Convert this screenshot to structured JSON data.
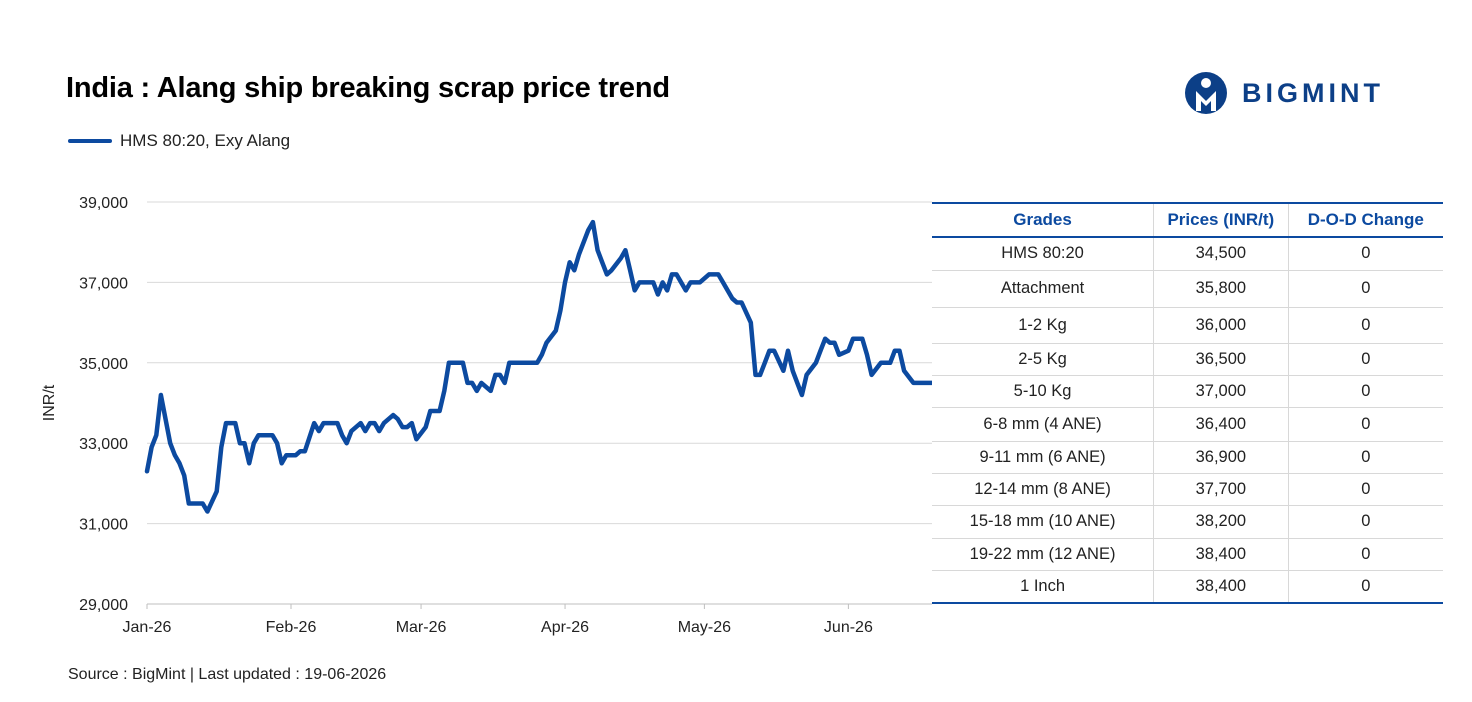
{
  "title": "India : Alang ship breaking scrap price trend",
  "logo": {
    "text": "BIGMINT",
    "icon": "bigmint-logo-icon",
    "color": "#0c3f87"
  },
  "source": "Source : BigMint | Last updated : 19-06-2026",
  "chart_data": {
    "type": "line",
    "title": "India : Alang ship breaking scrap price trend",
    "ylabel": "INR/t",
    "xlabel": "",
    "ylim": [
      29000,
      39000
    ],
    "yticks": [
      29000,
      31000,
      33000,
      35000,
      37000,
      39000
    ],
    "ytick_labels": [
      "29,000",
      "31,000",
      "33,000",
      "35,000",
      "37,000",
      "39,000"
    ],
    "xticks": [
      "2026-01-01",
      "2026-02-01",
      "2026-03-01",
      "2026-04-01",
      "2026-05-01",
      "2026-06-01"
    ],
    "xtick_labels": [
      "Jan-26",
      "Feb-26",
      "Mar-26",
      "Apr-26",
      "May-26",
      "Jun-26"
    ],
    "xlim": [
      "2026-01-01",
      "2026-06-19"
    ],
    "grid": "horizontal",
    "legend": "top-left",
    "series": [
      {
        "name": "HMS 80:20, Exy Alang",
        "color": "#0c4aa0",
        "points": [
          [
            "2026-01-01",
            32300
          ],
          [
            "2026-01-02",
            32900
          ],
          [
            "2026-01-03",
            33200
          ],
          [
            "2026-01-04",
            34200
          ],
          [
            "2026-01-06",
            33000
          ],
          [
            "2026-01-07",
            32700
          ],
          [
            "2026-01-08",
            32500
          ],
          [
            "2026-01-09",
            32200
          ],
          [
            "2026-01-10",
            31500
          ],
          [
            "2026-01-12",
            31500
          ],
          [
            "2026-01-13",
            31500
          ],
          [
            "2026-01-14",
            31300
          ],
          [
            "2026-01-16",
            31800
          ],
          [
            "2026-01-17",
            32900
          ],
          [
            "2026-01-18",
            33500
          ],
          [
            "2026-01-20",
            33500
          ],
          [
            "2026-01-21",
            33000
          ],
          [
            "2026-01-22",
            33000
          ],
          [
            "2026-01-23",
            32500
          ],
          [
            "2026-01-24",
            33000
          ],
          [
            "2026-01-25",
            33200
          ],
          [
            "2026-01-27",
            33200
          ],
          [
            "2026-01-28",
            33200
          ],
          [
            "2026-01-29",
            33000
          ],
          [
            "2026-01-30",
            32500
          ],
          [
            "2026-01-31",
            32700
          ],
          [
            "2026-02-02",
            32700
          ],
          [
            "2026-02-03",
            32800
          ],
          [
            "2026-02-04",
            32800
          ],
          [
            "2026-02-06",
            33500
          ],
          [
            "2026-02-07",
            33300
          ],
          [
            "2026-02-08",
            33500
          ],
          [
            "2026-02-10",
            33500
          ],
          [
            "2026-02-11",
            33500
          ],
          [
            "2026-02-12",
            33200
          ],
          [
            "2026-02-13",
            33000
          ],
          [
            "2026-02-14",
            33300
          ],
          [
            "2026-02-16",
            33500
          ],
          [
            "2026-02-17",
            33300
          ],
          [
            "2026-02-18",
            33500
          ],
          [
            "2026-02-19",
            33500
          ],
          [
            "2026-02-20",
            33300
          ],
          [
            "2026-02-21",
            33500
          ],
          [
            "2026-02-23",
            33700
          ],
          [
            "2026-02-24",
            33600
          ],
          [
            "2026-02-25",
            33400
          ],
          [
            "2026-02-26",
            33400
          ],
          [
            "2026-02-27",
            33500
          ],
          [
            "2026-02-28",
            33100
          ],
          [
            "2026-03-02",
            33400
          ],
          [
            "2026-03-03",
            33800
          ],
          [
            "2026-03-04",
            33800
          ],
          [
            "2026-03-05",
            33800
          ],
          [
            "2026-03-06",
            34300
          ],
          [
            "2026-03-07",
            35000
          ],
          [
            "2026-03-09",
            35000
          ],
          [
            "2026-03-10",
            35000
          ],
          [
            "2026-03-11",
            34500
          ],
          [
            "2026-03-12",
            34500
          ],
          [
            "2026-03-13",
            34300
          ],
          [
            "2026-03-14",
            34500
          ],
          [
            "2026-03-16",
            34300
          ],
          [
            "2026-03-17",
            34700
          ],
          [
            "2026-03-18",
            34700
          ],
          [
            "2026-03-19",
            34500
          ],
          [
            "2026-03-20",
            35000
          ],
          [
            "2026-03-23",
            35000
          ],
          [
            "2026-03-24",
            35000
          ],
          [
            "2026-03-25",
            35000
          ],
          [
            "2026-03-26",
            35000
          ],
          [
            "2026-03-27",
            35200
          ],
          [
            "2026-03-28",
            35500
          ],
          [
            "2026-03-30",
            35800
          ],
          [
            "2026-03-31",
            36300
          ],
          [
            "2026-04-01",
            37000
          ],
          [
            "2026-04-02",
            37500
          ],
          [
            "2026-04-03",
            37300
          ],
          [
            "2026-04-04",
            37700
          ],
          [
            "2026-04-06",
            38300
          ],
          [
            "2026-04-07",
            38500
          ],
          [
            "2026-04-08",
            37800
          ],
          [
            "2026-04-09",
            37500
          ],
          [
            "2026-04-10",
            37200
          ],
          [
            "2026-04-11",
            37300
          ],
          [
            "2026-04-13",
            37600
          ],
          [
            "2026-04-14",
            37800
          ],
          [
            "2026-04-15",
            37300
          ],
          [
            "2026-04-16",
            36800
          ],
          [
            "2026-04-17",
            37000
          ],
          [
            "2026-04-18",
            37000
          ],
          [
            "2026-04-20",
            37000
          ],
          [
            "2026-04-21",
            36700
          ],
          [
            "2026-04-22",
            37000
          ],
          [
            "2026-04-23",
            36800
          ],
          [
            "2026-04-24",
            37200
          ],
          [
            "2026-04-25",
            37200
          ],
          [
            "2026-04-27",
            36800
          ],
          [
            "2026-04-28",
            37000
          ],
          [
            "2026-04-29",
            37000
          ],
          [
            "2026-04-30",
            37000
          ],
          [
            "2026-05-01",
            37100
          ],
          [
            "2026-05-02",
            37200
          ],
          [
            "2026-05-04",
            37200
          ],
          [
            "2026-05-05",
            37000
          ],
          [
            "2026-05-06",
            36800
          ],
          [
            "2026-05-07",
            36600
          ],
          [
            "2026-05-08",
            36500
          ],
          [
            "2026-05-09",
            36500
          ],
          [
            "2026-05-11",
            36000
          ],
          [
            "2026-05-12",
            34700
          ],
          [
            "2026-05-13",
            34700
          ],
          [
            "2026-05-14",
            35000
          ],
          [
            "2026-05-15",
            35300
          ],
          [
            "2026-05-16",
            35300
          ],
          [
            "2026-05-18",
            34800
          ],
          [
            "2026-05-19",
            35300
          ],
          [
            "2026-05-20",
            34800
          ],
          [
            "2026-05-21",
            34500
          ],
          [
            "2026-05-22",
            34200
          ],
          [
            "2026-05-23",
            34700
          ],
          [
            "2026-05-25",
            35000
          ],
          [
            "2026-05-26",
            35300
          ],
          [
            "2026-05-27",
            35600
          ],
          [
            "2026-05-28",
            35500
          ],
          [
            "2026-05-29",
            35500
          ],
          [
            "2026-05-30",
            35200
          ],
          [
            "2026-06-01",
            35300
          ],
          [
            "2026-06-02",
            35600
          ],
          [
            "2026-06-03",
            35600
          ],
          [
            "2026-06-04",
            35600
          ],
          [
            "2026-06-05",
            35200
          ],
          [
            "2026-06-06",
            34700
          ],
          [
            "2026-06-08",
            35000
          ],
          [
            "2026-06-09",
            35000
          ],
          [
            "2026-06-10",
            35000
          ],
          [
            "2026-06-11",
            35300
          ],
          [
            "2026-06-12",
            35300
          ],
          [
            "2026-06-13",
            34800
          ],
          [
            "2026-06-15",
            34500
          ],
          [
            "2026-06-16",
            34500
          ],
          [
            "2026-06-17",
            34500
          ],
          [
            "2026-06-18",
            34500
          ],
          [
            "2026-06-19",
            34500
          ]
        ]
      }
    ]
  },
  "table": {
    "headers": [
      "Grades",
      "Prices (INR/t)",
      "D-O-D Change"
    ],
    "rows": [
      [
        "HMS 80:20",
        "34,500",
        "0"
      ],
      [
        "Attachment",
        "35,800",
        "0"
      ],
      [
        "1-2 Kg",
        "36,000",
        "0"
      ],
      [
        "2-5 Kg",
        "36,500",
        "0"
      ],
      [
        "5-10 Kg",
        "37,000",
        "0"
      ],
      [
        "6-8 mm (4 ANE)",
        "36,400",
        "0"
      ],
      [
        "9-11 mm (6 ANE)",
        "36,900",
        "0"
      ],
      [
        "12-14 mm (8 ANE)",
        "37,700",
        "0"
      ],
      [
        "15-18 mm (10 ANE)",
        "38,200",
        "0"
      ],
      [
        "19-22 mm (12 ANE)",
        "38,400",
        "0"
      ],
      [
        "1 Inch",
        "38,400",
        "0"
      ]
    ]
  }
}
